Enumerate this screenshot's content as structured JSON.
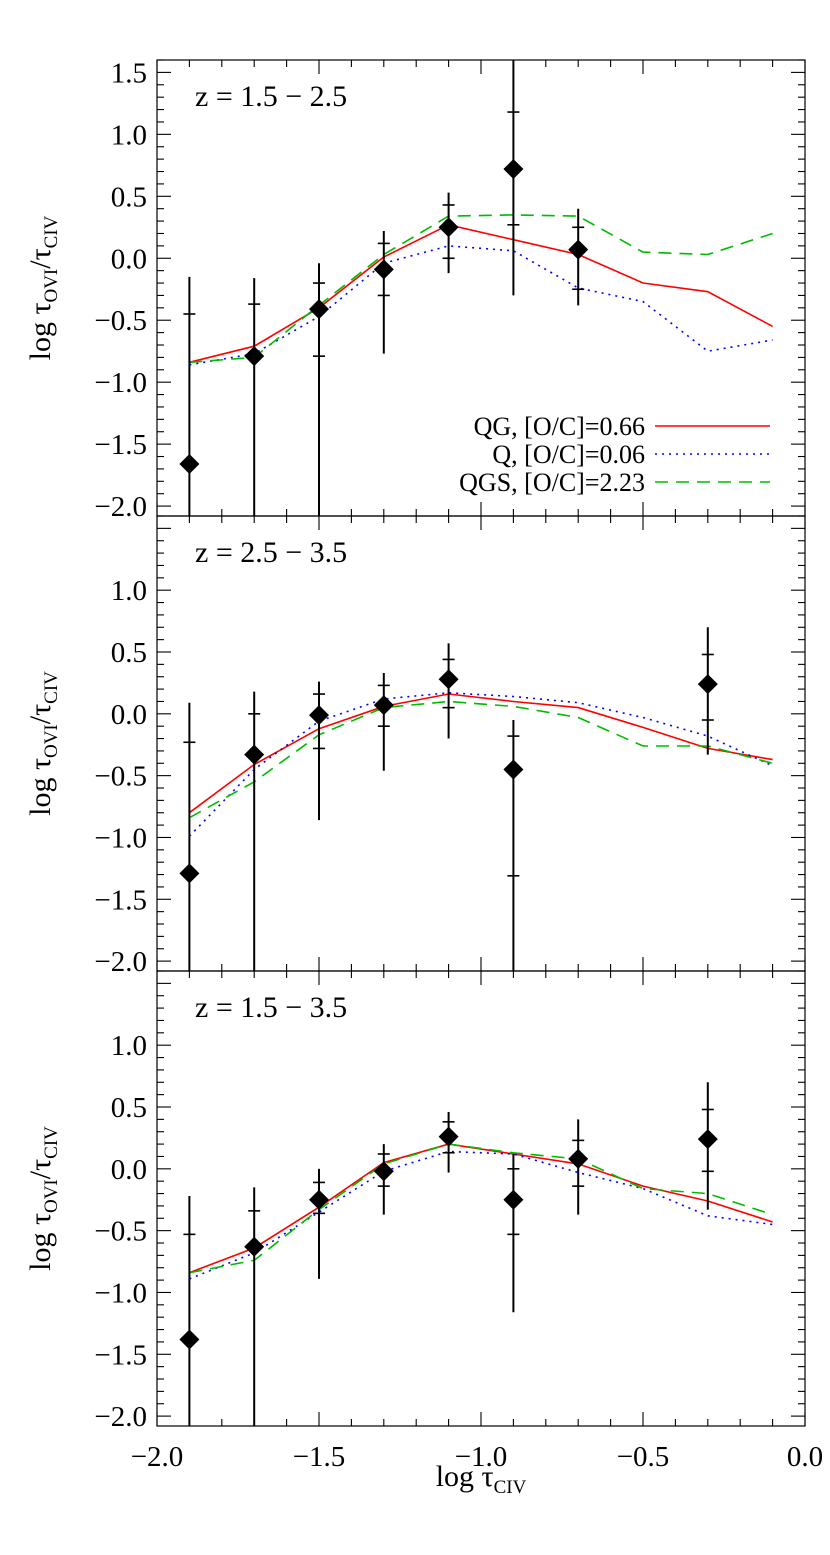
{
  "chart_data": {
    "type": "line",
    "x_axis": {
      "label": "log τ",
      "label_subscript": "CIV",
      "range": [
        -2.0,
        0.0
      ],
      "major_ticks": [
        -2.0,
        -1.5,
        -1.0,
        -0.5,
        0.0
      ],
      "tick_labels": [
        "−2.0",
        "−1.5",
        "−1.0",
        "−0.5",
        "0.0"
      ]
    },
    "y_axis": {
      "label": "log τ",
      "label_subscript_num": "OVI",
      "label_slash": "/τ",
      "label_subscript_den": "CIV",
      "range": [
        -2.08,
        1.6
      ]
    },
    "series_styles": [
      {
        "id": "QG",
        "color": "#ff0000",
        "dash": ""
      },
      {
        "id": "Q",
        "color": "#0000ff",
        "dash": "2,5"
      },
      {
        "id": "QGS",
        "color": "#00bb00",
        "dash": "13,8"
      }
    ],
    "legend": {
      "placement": "lower-right of top panel",
      "entries": [
        {
          "series": "QG",
          "label": "QG, [O/C]=0.66"
        },
        {
          "series": "Q",
          "label": "Q, [O/C]=0.06"
        },
        {
          "series": "QGS",
          "label": "QGS, [O/C]=2.23"
        }
      ]
    },
    "panels": [
      {
        "label": "z = 1.5 − 2.5",
        "y_ticks": [
          1.5,
          1.0,
          0.5,
          0.0,
          -0.5,
          -1.0,
          -1.5,
          -2.0
        ],
        "y_tick_labels": [
          "1.5",
          "1.0",
          "0.5",
          "0.0",
          "−0.5",
          "−1.0",
          "−1.5",
          "−2.0"
        ],
        "observed": [
          {
            "x": -1.9,
            "y": -1.66,
            "err_outer": [
              -2.08,
              -0.15
            ],
            "err_inner": [
              -2.08,
              -0.45
            ]
          },
          {
            "x": -1.7,
            "y": -0.79,
            "err_outer": [
              -2.08,
              -0.16
            ],
            "err_inner": [
              -2.08,
              -0.37
            ]
          },
          {
            "x": -1.5,
            "y": -0.41,
            "err_outer": [
              -2.08,
              -0.04
            ],
            "err_inner": [
              -0.79,
              -0.2
            ]
          },
          {
            "x": -1.3,
            "y": -0.09,
            "err_outer": [
              -0.77,
              0.22
            ],
            "err_inner": [
              -0.3,
              0.12
            ]
          },
          {
            "x": -1.1,
            "y": 0.25,
            "err_outer": [
              -0.12,
              0.53
            ],
            "err_inner": [
              0.0,
              0.43
            ]
          },
          {
            "x": -0.9,
            "y": 0.72,
            "err_outer": [
              -0.3,
              1.6
            ],
            "err_inner": [
              0.27,
              1.18
            ]
          },
          {
            "x": -0.7,
            "y": 0.07,
            "err_outer": [
              -0.38,
              0.4
            ],
            "err_inner": [
              -0.25,
              0.25
            ]
          }
        ],
        "models": [
          {
            "series": "QG",
            "x": [
              -1.9,
              -1.7,
              -1.5,
              -1.3,
              -1.1,
              -0.9,
              -0.7,
              -0.5,
              -0.3,
              -0.1
            ],
            "y": [
              -0.84,
              -0.71,
              -0.4,
              0.01,
              0.27,
              0.15,
              0.03,
              -0.2,
              -0.27,
              -0.55
            ]
          },
          {
            "series": "Q",
            "x": [
              -1.9,
              -1.7,
              -1.5,
              -1.3,
              -1.1,
              -0.9,
              -0.7,
              -0.5,
              -0.3,
              -0.1
            ],
            "y": [
              -0.86,
              -0.77,
              -0.47,
              -0.04,
              0.1,
              0.06,
              -0.24,
              -0.35,
              -0.75,
              -0.66
            ]
          },
          {
            "series": "QGS",
            "x": [
              -1.9,
              -1.7,
              -1.5,
              -1.3,
              -1.1,
              -0.9,
              -0.7,
              -0.5,
              -0.3,
              -0.1
            ],
            "y": [
              -0.84,
              -0.8,
              -0.38,
              0.03,
              0.34,
              0.35,
              0.34,
              0.05,
              0.03,
              0.2
            ]
          }
        ]
      },
      {
        "label": "z = 2.5 − 3.5",
        "y_ticks": [
          1.0,
          0.5,
          0.0,
          -0.5,
          -1.0,
          -1.5,
          -2.0
        ],
        "y_tick_labels": [
          "1.0",
          "0.5",
          "0.0",
          "−0.5",
          "−1.0",
          "−1.5",
          "−2.0"
        ],
        "observed": [
          {
            "x": -1.9,
            "y": -1.29,
            "err_outer": [
              -2.08,
              0.09
            ],
            "err_inner": [
              -2.08,
              -0.23
            ]
          },
          {
            "x": -1.7,
            "y": -0.33,
            "err_outer": [
              -2.08,
              0.18
            ],
            "err_inner": [
              -2.08,
              0.0
            ]
          },
          {
            "x": -1.5,
            "y": -0.01,
            "err_outer": [
              -0.86,
              0.26
            ],
            "err_inner": [
              -0.28,
              0.16
            ]
          },
          {
            "x": -1.3,
            "y": 0.07,
            "err_outer": [
              -0.46,
              0.33
            ],
            "err_inner": [
              -0.1,
              0.23
            ]
          },
          {
            "x": -1.1,
            "y": 0.28,
            "err_outer": [
              -0.2,
              0.57
            ],
            "err_inner": [
              0.05,
              0.44
            ]
          },
          {
            "x": -0.9,
            "y": -0.45,
            "err_outer": [
              -2.08,
              -0.05
            ],
            "err_inner": [
              -1.31,
              -0.18
            ]
          },
          {
            "x": -0.3,
            "y": 0.24,
            "err_outer": [
              -0.33,
              0.7
            ],
            "err_inner": [
              -0.05,
              0.48
            ]
          }
        ],
        "models": [
          {
            "series": "QG",
            "x": [
              -1.9,
              -1.7,
              -1.5,
              -1.3,
              -1.1,
              -0.9,
              -0.7,
              -0.5,
              -0.3,
              -0.1
            ],
            "y": [
              -0.8,
              -0.41,
              -0.12,
              0.06,
              0.16,
              0.1,
              0.05,
              -0.11,
              -0.28,
              -0.37
            ]
          },
          {
            "series": "Q",
            "x": [
              -1.9,
              -1.7,
              -1.5,
              -1.3,
              -1.1,
              -0.9,
              -0.7,
              -0.5,
              -0.3,
              -0.1
            ],
            "y": [
              -0.99,
              -0.45,
              -0.06,
              0.12,
              0.17,
              0.14,
              0.09,
              -0.03,
              -0.18,
              -0.42
            ]
          },
          {
            "series": "QGS",
            "x": [
              -1.9,
              -1.7,
              -1.5,
              -1.3,
              -1.1,
              -0.9,
              -0.7,
              -0.5,
              -0.3,
              -0.1
            ],
            "y": [
              -0.84,
              -0.55,
              -0.17,
              0.05,
              0.1,
              0.06,
              -0.03,
              -0.26,
              -0.26,
              -0.4
            ]
          }
        ]
      },
      {
        "label": "z = 1.5 − 3.5",
        "y_ticks": [
          1.0,
          0.5,
          0.0,
          -0.5,
          -1.0,
          -1.5,
          -2.0
        ],
        "y_tick_labels": [
          "1.0",
          "0.5",
          "0.0",
          "−0.5",
          "−1.0",
          "−1.5",
          "−2.0"
        ],
        "observed": [
          {
            "x": -1.9,
            "y": -1.38,
            "err_outer": [
              -2.08,
              -0.22
            ],
            "err_inner": [
              -2.08,
              -0.53
            ]
          },
          {
            "x": -1.7,
            "y": -0.63,
            "err_outer": [
              -2.08,
              -0.15
            ],
            "err_inner": [
              -2.08,
              -0.34
            ]
          },
          {
            "x": -1.5,
            "y": -0.25,
            "err_outer": [
              -0.89,
              0.0
            ],
            "err_inner": [
              -0.36,
              -0.11
            ]
          },
          {
            "x": -1.3,
            "y": -0.02,
            "err_outer": [
              -0.37,
              0.2
            ],
            "err_inner": [
              -0.14,
              0.12
            ]
          },
          {
            "x": -1.1,
            "y": 0.26,
            "err_outer": [
              -0.03,
              0.46
            ],
            "err_inner": [
              0.13,
              0.38
            ]
          },
          {
            "x": -0.9,
            "y": -0.25,
            "err_outer": [
              -1.16,
              0.12
            ],
            "err_inner": [
              -0.53,
              0.0
            ]
          },
          {
            "x": -0.7,
            "y": 0.08,
            "err_outer": [
              -0.37,
              0.4
            ],
            "err_inner": [
              -0.14,
              0.23
            ]
          },
          {
            "x": -0.3,
            "y": 0.24,
            "err_outer": [
              -0.33,
              0.7
            ],
            "err_inner": [
              -0.02,
              0.48
            ]
          }
        ],
        "models": [
          {
            "series": "QG",
            "x": [
              -1.9,
              -1.7,
              -1.5,
              -1.3,
              -1.1,
              -0.9,
              -0.7,
              -0.5,
              -0.3,
              -0.1
            ],
            "y": [
              -0.84,
              -0.64,
              -0.31,
              0.05,
              0.2,
              0.12,
              0.04,
              -0.14,
              -0.26,
              -0.43
            ]
          },
          {
            "series": "Q",
            "x": [
              -1.9,
              -1.7,
              -1.5,
              -1.3,
              -1.1,
              -0.9,
              -0.7,
              -0.5,
              -0.3,
              -0.1
            ],
            "y": [
              -0.89,
              -0.68,
              -0.35,
              -0.02,
              0.14,
              0.12,
              -0.03,
              -0.16,
              -0.38,
              -0.45
            ]
          },
          {
            "series": "QGS",
            "x": [
              -1.9,
              -1.7,
              -1.5,
              -1.3,
              -1.1,
              -0.9,
              -0.7,
              -0.5,
              -0.3,
              -0.1
            ],
            "y": [
              -0.84,
              -0.74,
              -0.33,
              0.04,
              0.2,
              0.13,
              0.08,
              -0.16,
              -0.2,
              -0.37
            ]
          }
        ]
      }
    ]
  }
}
